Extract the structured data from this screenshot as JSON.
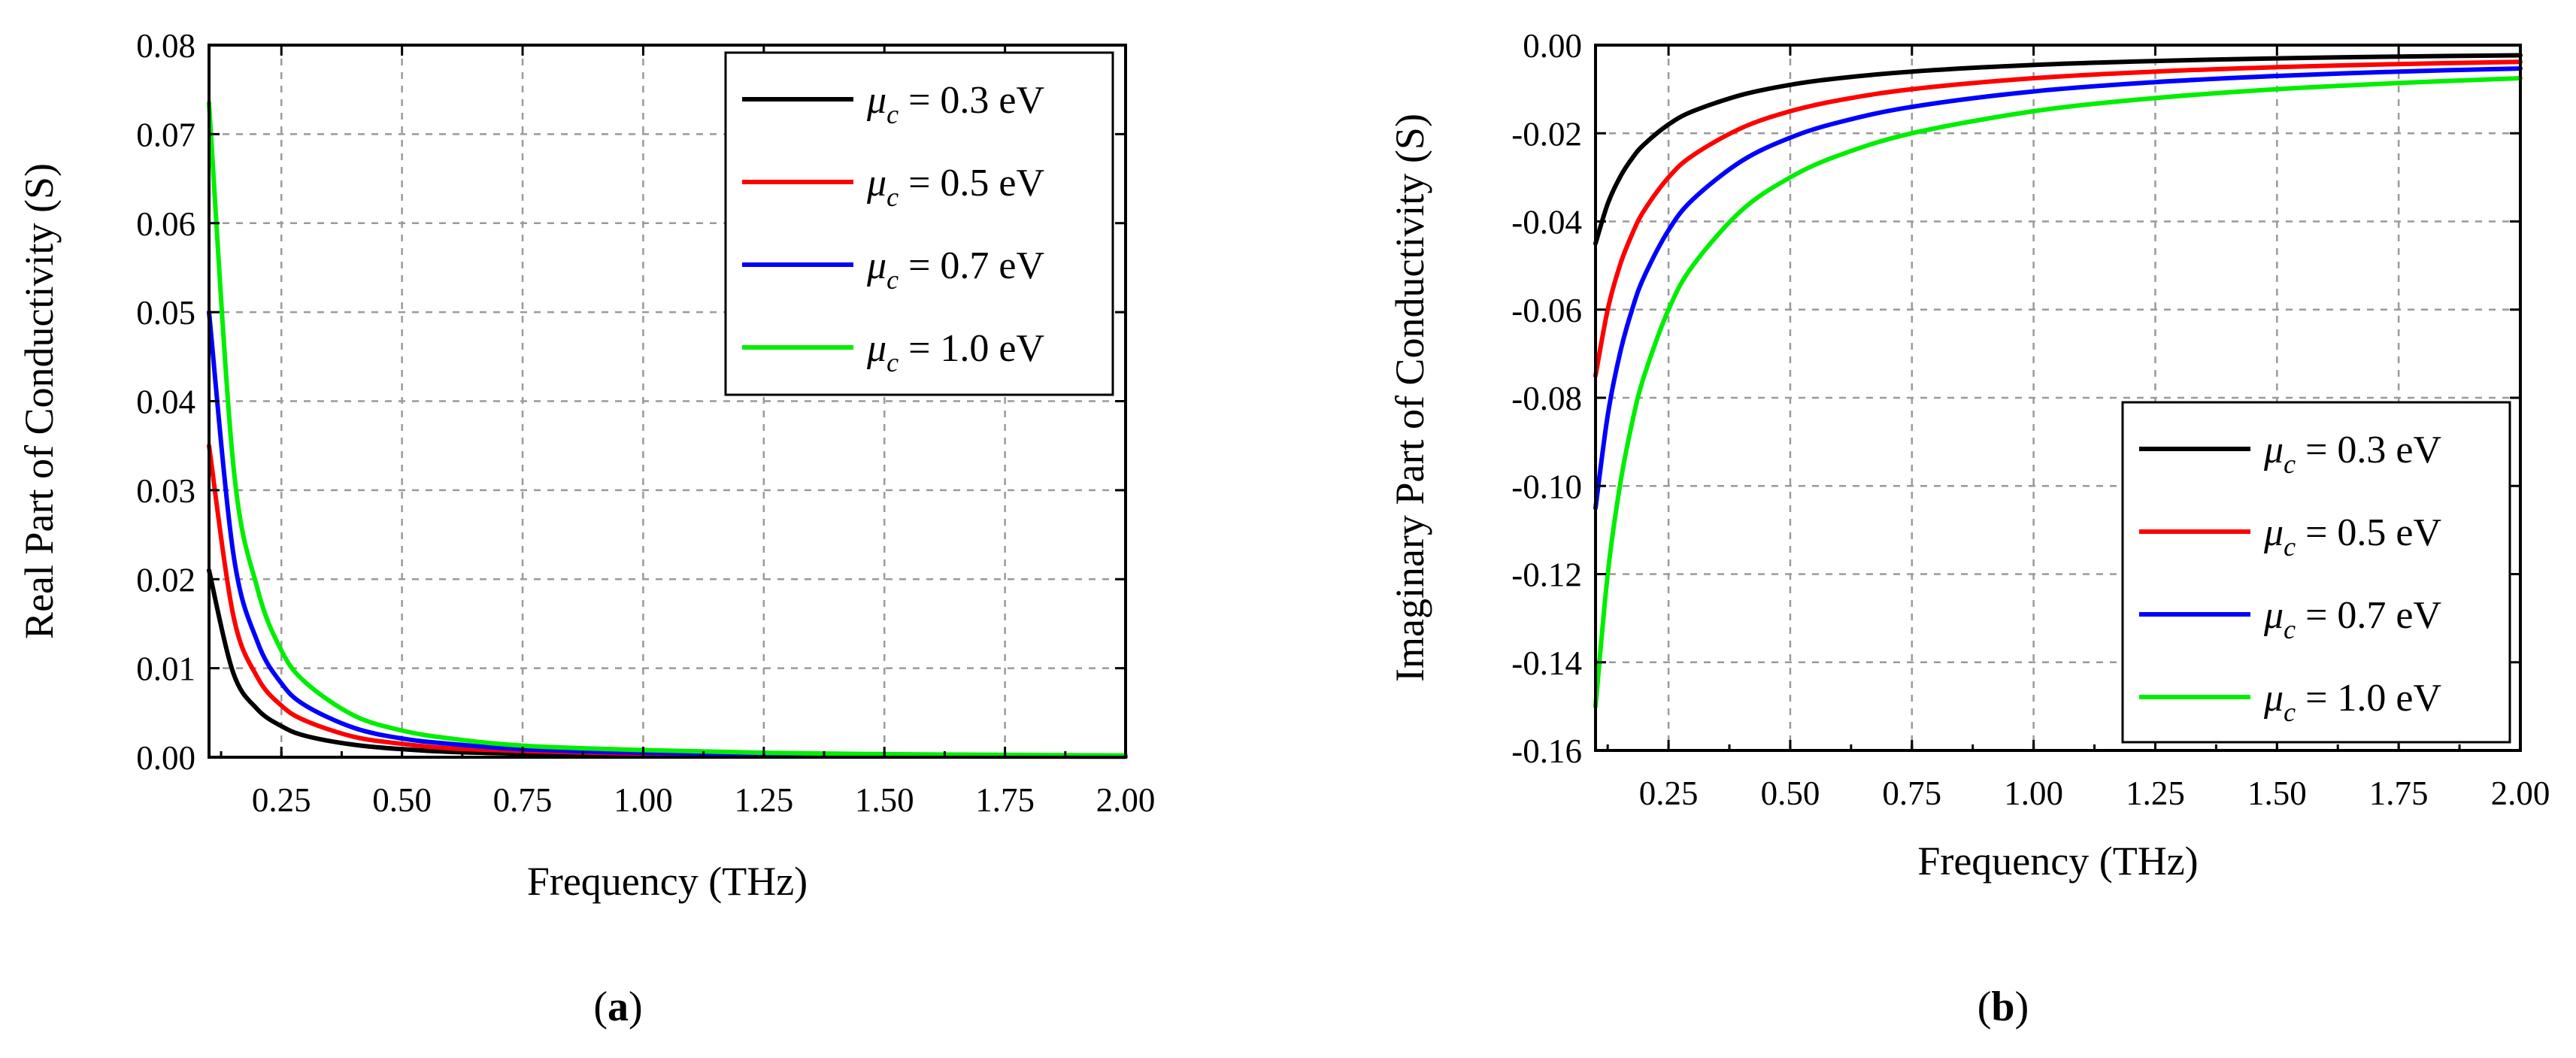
{
  "chart_data": [
    {
      "type": "line",
      "panel_label": "(a)",
      "xlabel": "Frequency (THz)",
      "ylabel": "Real Part of Conductivity (S)",
      "xlim": [
        0.1,
        2.0
      ],
      "ylim": [
        0.0,
        0.08
      ],
      "grid": true,
      "legend_position": "top-right",
      "xticks": [
        "0.25",
        "0.50",
        "0.75",
        "1.00",
        "1.25",
        "1.50",
        "1.75",
        "2.00"
      ],
      "yticks": [
        "0.00",
        "0.01",
        "0.02",
        "0.03",
        "0.04",
        "0.05",
        "0.06",
        "0.07",
        "0.08"
      ],
      "x": [
        0.1,
        0.15,
        0.2,
        0.25,
        0.3,
        0.4,
        0.5,
        0.6,
        0.75,
        1.0,
        1.25,
        1.5,
        1.75,
        2.0
      ],
      "series": [
        {
          "name": "μc = 0.3 eV",
          "label_value": "0.3 eV",
          "color": "#000000",
          "values": [
            0.021,
            0.0095,
            0.0054,
            0.0035,
            0.0024,
            0.0014,
            0.0009,
            0.0006,
            0.0004,
            0.0002,
            0.00015,
            0.0001,
            8e-05,
            6e-05
          ]
        },
        {
          "name": "μc = 0.5 eV",
          "label_value": "0.5 eV",
          "color": "#ff0000",
          "values": [
            0.035,
            0.016,
            0.009,
            0.0058,
            0.0041,
            0.0023,
            0.0015,
            0.001,
            0.0007,
            0.0004,
            0.00025,
            0.00017,
            0.00013,
            0.0001
          ]
        },
        {
          "name": "μc = 0.7 eV",
          "label_value": "0.7 eV",
          "color": "#0000ff",
          "values": [
            0.05,
            0.023,
            0.013,
            0.0083,
            0.0058,
            0.0033,
            0.0021,
            0.0015,
            0.0009,
            0.0005,
            0.00035,
            0.00024,
            0.00018,
            0.00014
          ]
        },
        {
          "name": "μc = 1.0 eV",
          "label_value": "1.0 eV",
          "color": "#00ee00",
          "values": [
            0.0735,
            0.033,
            0.019,
            0.012,
            0.0084,
            0.0047,
            0.003,
            0.0021,
            0.0013,
            0.0008,
            0.0005,
            0.00035,
            0.00026,
            0.0002
          ]
        }
      ]
    },
    {
      "type": "line",
      "panel_label": "(b)",
      "xlabel": "Frequency (THz)",
      "ylabel": "Imaginary Part of Conductivity (S)",
      "xlim": [
        0.1,
        2.0
      ],
      "ylim": [
        -0.16,
        0.0
      ],
      "grid": true,
      "legend_position": "bottom-right",
      "xticks": [
        "0.25",
        "0.50",
        "0.75",
        "1.00",
        "1.25",
        "1.50",
        "1.75",
        "2.00"
      ],
      "yticks": [
        "-0.16",
        "-0.14",
        "-0.12",
        "-0.10",
        "-0.08",
        "-0.06",
        "-0.04",
        "-0.02",
        "0.00"
      ],
      "x": [
        0.1,
        0.125,
        0.15,
        0.175,
        0.2,
        0.25,
        0.3,
        0.4,
        0.5,
        0.6,
        0.75,
        1.0,
        1.25,
        1.5,
        1.75,
        2.0
      ],
      "series": [
        {
          "name": "μc = 0.3 eV",
          "label_value": "0.3 eV",
          "color": "#000000",
          "values": [
            -0.045,
            -0.036,
            -0.03,
            -0.0257,
            -0.0225,
            -0.018,
            -0.015,
            -0.0113,
            -0.009,
            -0.0075,
            -0.006,
            -0.0045,
            -0.0036,
            -0.003,
            -0.0026,
            -0.0023
          ]
        },
        {
          "name": "μc = 0.5 eV",
          "label_value": "0.5 eV",
          "color": "#ff0000",
          "values": [
            -0.075,
            -0.06,
            -0.05,
            -0.0429,
            -0.0375,
            -0.03,
            -0.025,
            -0.0188,
            -0.015,
            -0.0125,
            -0.01,
            -0.0075,
            -0.006,
            -0.005,
            -0.0043,
            -0.0038
          ]
        },
        {
          "name": "μc = 0.7 eV",
          "label_value": "0.7 eV",
          "color": "#0000ff",
          "values": [
            -0.105,
            -0.084,
            -0.07,
            -0.06,
            -0.0525,
            -0.042,
            -0.035,
            -0.0263,
            -0.021,
            -0.0175,
            -0.014,
            -0.0105,
            -0.0084,
            -0.007,
            -0.006,
            -0.0053
          ]
        },
        {
          "name": "μc = 1.0 eV",
          "label_value": "1.0 eV",
          "color": "#00ee00",
          "values": [
            -0.15,
            -0.12,
            -0.1,
            -0.0857,
            -0.075,
            -0.06,
            -0.05,
            -0.0375,
            -0.03,
            -0.025,
            -0.02,
            -0.015,
            -0.012,
            -0.01,
            -0.0086,
            -0.0075
          ]
        }
      ]
    }
  ]
}
